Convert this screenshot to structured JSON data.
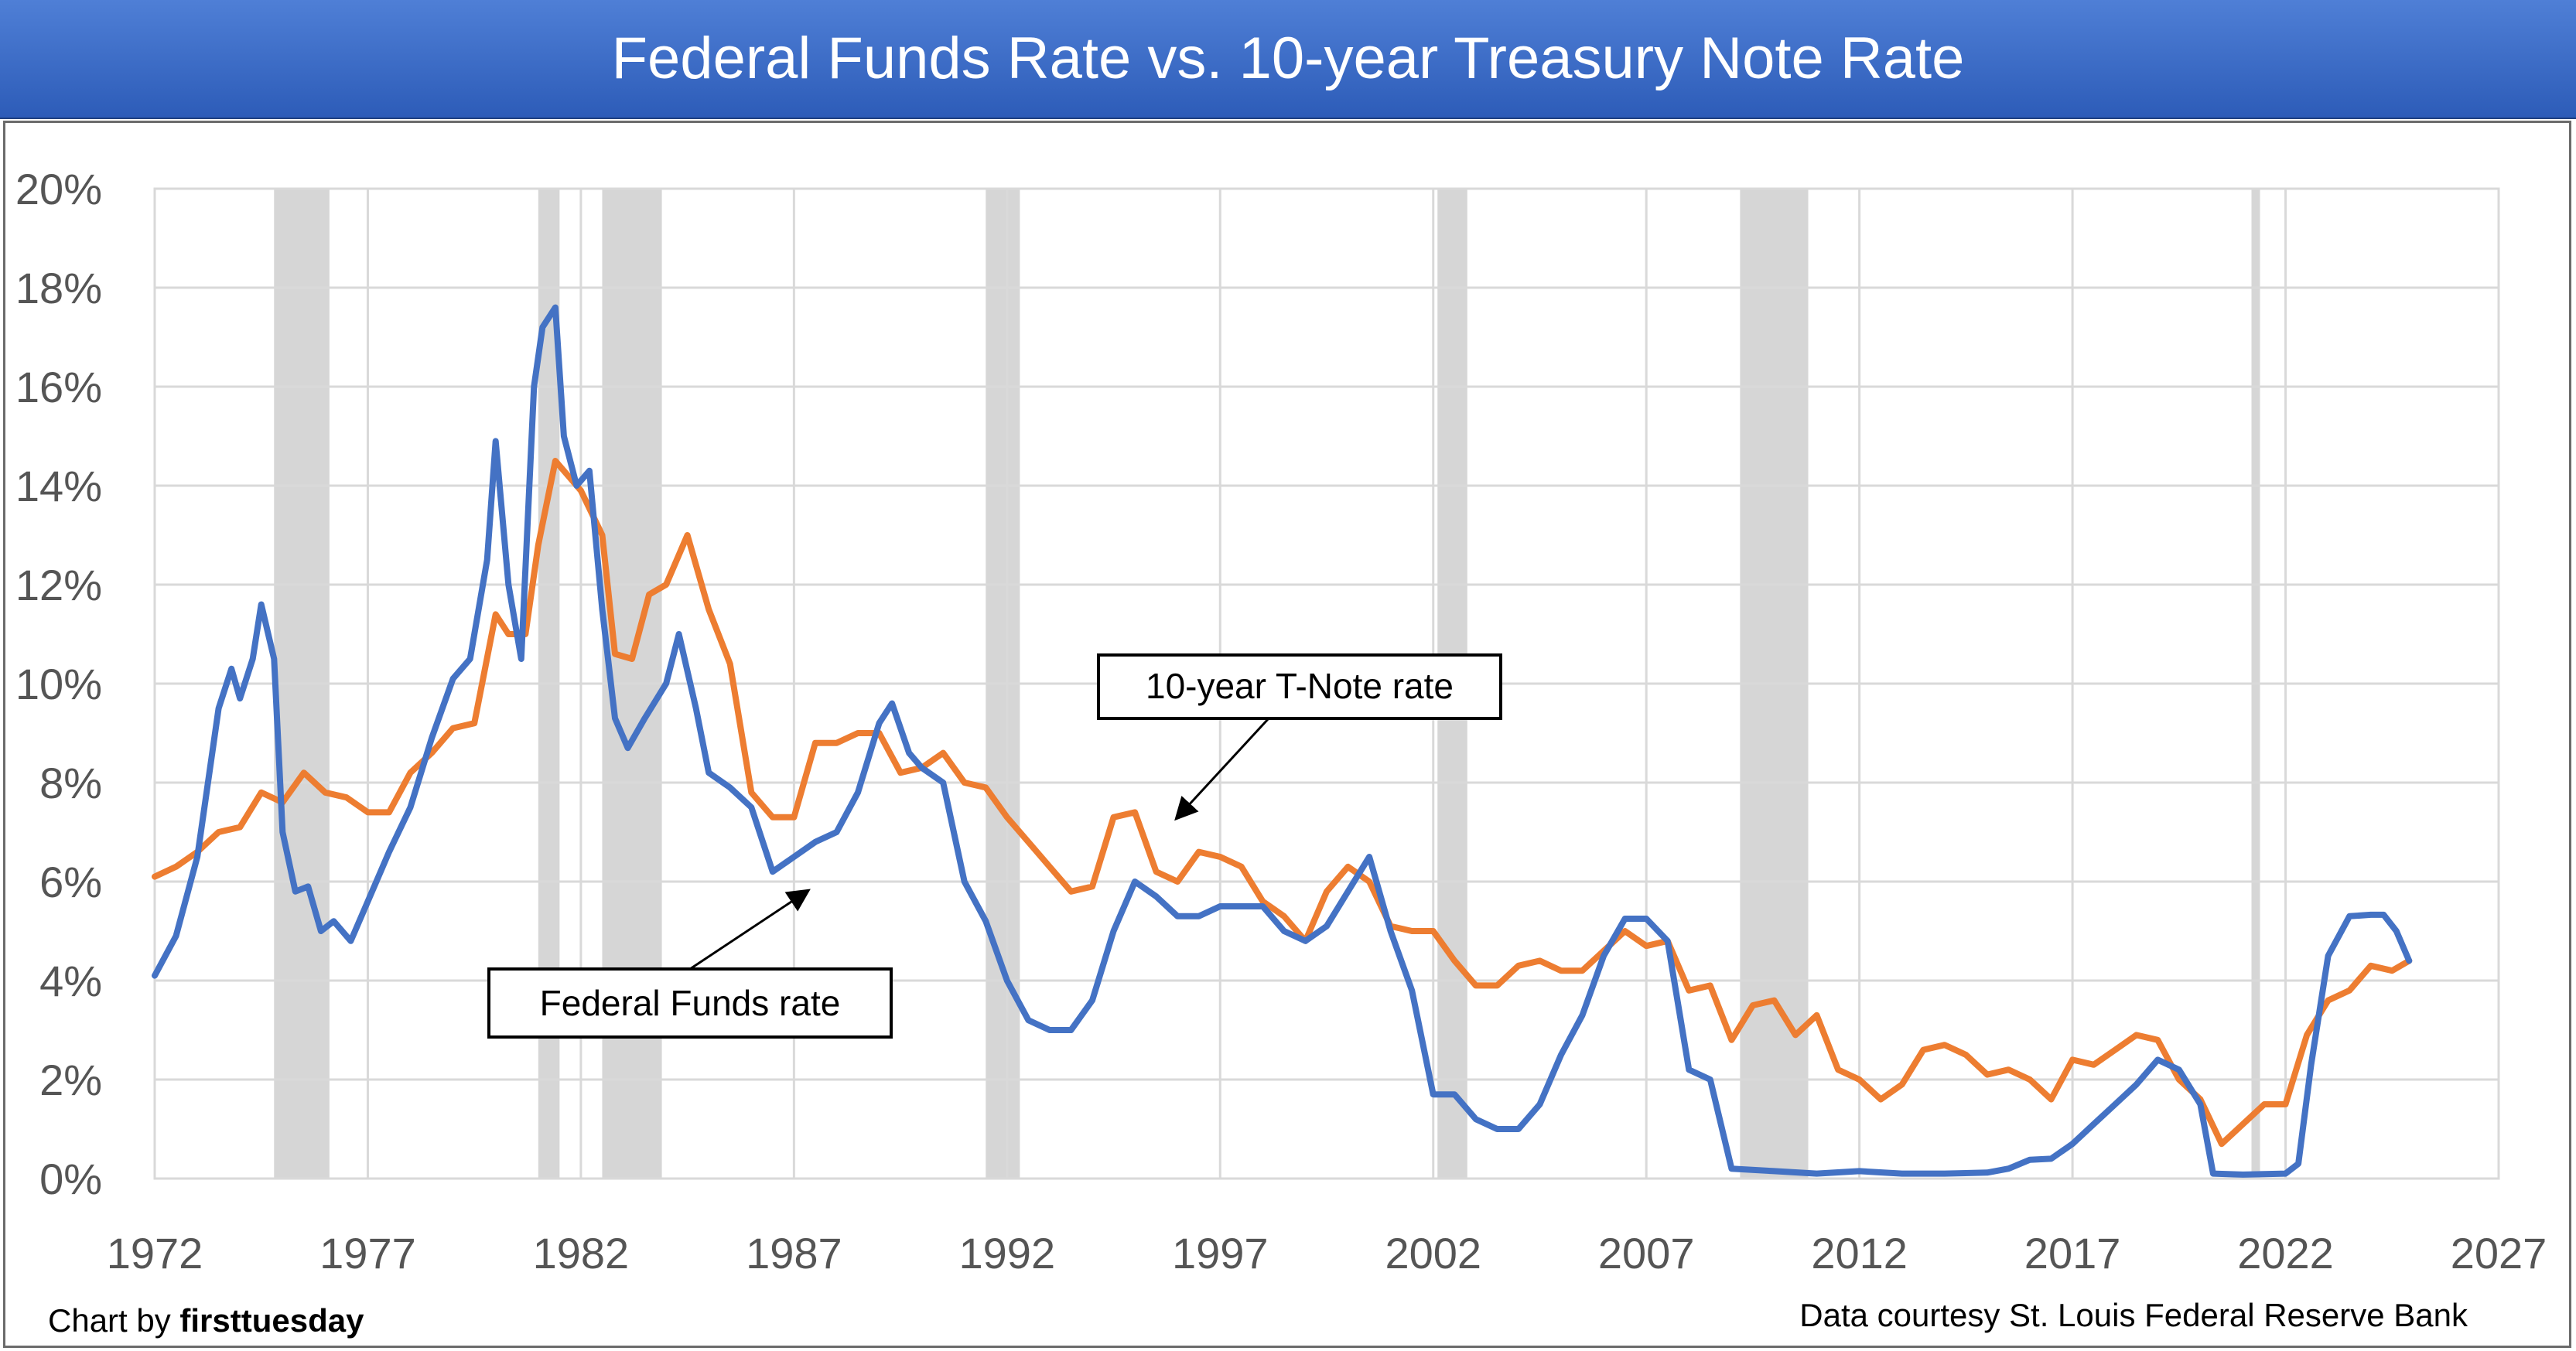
{
  "chart_data": {
    "type": "line",
    "title": "Federal Funds Rate vs. 10-year Treasury Note Rate",
    "xlim": [
      1972,
      2027
    ],
    "ylim": [
      0,
      20
    ],
    "x_ticks": [
      1972,
      1977,
      1982,
      1987,
      1992,
      1997,
      2002,
      2007,
      2012,
      2017,
      2022,
      2027
    ],
    "x_tick_labels": [
      "1972",
      "1977",
      "1982",
      "1987",
      "1992",
      "1997",
      "2002",
      "2007",
      "2012",
      "2017",
      "2022",
      "2027"
    ],
    "y_ticks": [
      0,
      2,
      4,
      6,
      8,
      10,
      12,
      14,
      16,
      18,
      20
    ],
    "y_tick_labels": [
      "0%",
      "2%",
      "4%",
      "6%",
      "8%",
      "10%",
      "12%",
      "14%",
      "16%",
      "18%",
      "20%"
    ],
    "grid": true,
    "recessions": [
      [
        1974.8,
        1976.1
      ],
      [
        1981.0,
        1981.5
      ],
      [
        1982.5,
        1983.9
      ],
      [
        1991.5,
        1992.3
      ],
      [
        2002.1,
        2002.8
      ],
      [
        2009.2,
        2010.8
      ],
      [
        2021.2,
        2021.4
      ]
    ],
    "series": [
      {
        "name": "Federal Funds rate",
        "color": "#4472c4",
        "x": [
          1972.0,
          1972.5,
          1973.0,
          1973.5,
          1973.8,
          1974.0,
          1974.3,
          1974.5,
          1974.8,
          1975.0,
          1975.3,
          1975.6,
          1975.9,
          1976.2,
          1976.6,
          1977.0,
          1977.5,
          1978.0,
          1978.5,
          1979.0,
          1979.4,
          1979.8,
          1980.0,
          1980.3,
          1980.6,
          1980.9,
          1981.1,
          1981.4,
          1981.6,
          1981.9,
          1982.2,
          1982.5,
          1982.8,
          1983.1,
          1983.5,
          1984.0,
          1984.3,
          1984.7,
          1985.0,
          1985.5,
          1986.0,
          1986.5,
          1987.0,
          1987.5,
          1988.0,
          1988.5,
          1989.0,
          1989.3,
          1989.7,
          1990.0,
          1990.5,
          1991.0,
          1991.5,
          1992.0,
          1992.5,
          1993.0,
          1993.5,
          1994.0,
          1994.5,
          1995.0,
          1995.5,
          1996.0,
          1996.5,
          1997.0,
          1997.5,
          1998.0,
          1998.5,
          1999.0,
          1999.5,
          2000.0,
          2000.5,
          2001.0,
          2001.5,
          2002.0,
          2002.5,
          2003.0,
          2003.5,
          2004.0,
          2004.5,
          2005.0,
          2005.5,
          2006.0,
          2006.5,
          2007.0,
          2007.5,
          2008.0,
          2008.5,
          2009.0,
          2010.0,
          2011.0,
          2012.0,
          2013.0,
          2014.0,
          2015.0,
          2015.5,
          2016.0,
          2016.5,
          2017.0,
          2017.5,
          2018.0,
          2018.5,
          2019.0,
          2019.5,
          2020.0,
          2020.3,
          2021.0,
          2022.0,
          2022.3,
          2022.6,
          2023.0,
          2023.5,
          2024.0,
          2024.3,
          2024.6,
          2024.9
        ],
        "y": [
          4.1,
          4.9,
          6.5,
          9.5,
          10.3,
          9.7,
          10.5,
          11.6,
          10.5,
          7.0,
          5.8,
          5.9,
          5.0,
          5.2,
          4.8,
          5.6,
          6.6,
          7.5,
          8.9,
          10.1,
          10.5,
          12.5,
          14.9,
          12.0,
          10.5,
          16.0,
          17.2,
          17.6,
          15.0,
          14.0,
          14.3,
          11.5,
          9.3,
          8.7,
          9.3,
          10.0,
          11.0,
          9.5,
          8.2,
          7.9,
          7.5,
          6.2,
          6.5,
          6.8,
          7.0,
          7.8,
          9.2,
          9.6,
          8.6,
          8.3,
          8.0,
          6.0,
          5.2,
          4.0,
          3.2,
          3.0,
          3.0,
          3.6,
          5.0,
          6.0,
          5.7,
          5.3,
          5.3,
          5.5,
          5.5,
          5.5,
          5.0,
          4.8,
          5.1,
          5.8,
          6.5,
          5.0,
          3.8,
          1.7,
          1.7,
          1.2,
          1.0,
          1.0,
          1.5,
          2.5,
          3.3,
          4.5,
          5.25,
          5.25,
          4.8,
          2.2,
          2.0,
          0.2,
          0.15,
          0.1,
          0.15,
          0.1,
          0.1,
          0.12,
          0.2,
          0.38,
          0.4,
          0.7,
          1.1,
          1.5,
          1.9,
          2.4,
          2.2,
          1.5,
          0.1,
          0.08,
          0.1,
          0.3,
          2.3,
          4.5,
          5.3,
          5.33,
          5.33,
          5.0,
          4.4
        ]
      },
      {
        "name": "10-year T-Note rate",
        "color": "#ed7d31",
        "x": [
          1972.0,
          1972.5,
          1973.0,
          1973.5,
          1974.0,
          1974.5,
          1975.0,
          1975.5,
          1976.0,
          1976.5,
          1977.0,
          1977.5,
          1978.0,
          1978.5,
          1979.0,
          1979.5,
          1980.0,
          1980.3,
          1980.7,
          1981.0,
          1981.4,
          1981.7,
          1982.0,
          1982.5,
          1982.8,
          1983.2,
          1983.6,
          1984.0,
          1984.5,
          1985.0,
          1985.5,
          1986.0,
          1986.5,
          1987.0,
          1987.5,
          1988.0,
          1988.5,
          1989.0,
          1989.5,
          1990.0,
          1990.5,
          1991.0,
          1991.5,
          1992.0,
          1992.5,
          1993.0,
          1993.5,
          1994.0,
          1994.5,
          1995.0,
          1995.5,
          1996.0,
          1996.5,
          1997.0,
          1997.5,
          1998.0,
          1998.5,
          1999.0,
          1999.5,
          2000.0,
          2000.5,
          2001.0,
          2001.5,
          2002.0,
          2002.5,
          2003.0,
          2003.5,
          2004.0,
          2004.5,
          2005.0,
          2005.5,
          2006.0,
          2006.5,
          2007.0,
          2007.5,
          2008.0,
          2008.5,
          2009.0,
          2009.5,
          2010.0,
          2010.5,
          2011.0,
          2011.5,
          2012.0,
          2012.5,
          2013.0,
          2013.5,
          2014.0,
          2014.5,
          2015.0,
          2015.5,
          2016.0,
          2016.5,
          2017.0,
          2017.5,
          2018.0,
          2018.5,
          2019.0,
          2019.5,
          2020.0,
          2020.5,
          2021.0,
          2021.5,
          2022.0,
          2022.5,
          2023.0,
          2023.5,
          2024.0,
          2024.5,
          2024.9
        ],
        "y": [
          6.1,
          6.3,
          6.6,
          7.0,
          7.1,
          7.8,
          7.6,
          8.2,
          7.8,
          7.7,
          7.4,
          7.4,
          8.2,
          8.6,
          9.1,
          9.2,
          11.4,
          11.0,
          11.0,
          12.8,
          14.5,
          14.2,
          13.9,
          13.0,
          10.6,
          10.5,
          11.8,
          12.0,
          13.0,
          11.5,
          10.4,
          7.8,
          7.3,
          7.3,
          8.8,
          8.8,
          9.0,
          9.0,
          8.2,
          8.3,
          8.6,
          8.0,
          7.9,
          7.3,
          6.8,
          6.3,
          5.8,
          5.9,
          7.3,
          7.4,
          6.2,
          6.0,
          6.6,
          6.5,
          6.3,
          5.6,
          5.3,
          4.8,
          5.8,
          6.3,
          6.0,
          5.1,
          5.0,
          5.0,
          4.4,
          3.9,
          3.9,
          4.3,
          4.4,
          4.2,
          4.2,
          4.6,
          5.0,
          4.7,
          4.8,
          3.8,
          3.9,
          2.8,
          3.5,
          3.6,
          2.9,
          3.3,
          2.2,
          2.0,
          1.6,
          1.9,
          2.6,
          2.7,
          2.5,
          2.1,
          2.2,
          2.0,
          1.6,
          2.4,
          2.3,
          2.6,
          2.9,
          2.8,
          2.0,
          1.6,
          0.7,
          1.1,
          1.5,
          1.5,
          2.9,
          3.6,
          3.8,
          4.3,
          4.2,
          4.4
        ]
      }
    ],
    "annotations": [
      {
        "text": "10-year T-Note rate",
        "series": "10-year T-Note rate",
        "arrow_to": [
          1996.0,
          7.3
        ]
      },
      {
        "text": "Federal Funds rate",
        "series": "Federal Funds rate",
        "arrow_to": [
          1987.3,
          5.8
        ]
      }
    ]
  },
  "footer": {
    "credit_prefix": "Chart by ",
    "credit_brand": "firsttuesday",
    "source": "Data courtesy St. Louis Federal Reserve Bank"
  }
}
